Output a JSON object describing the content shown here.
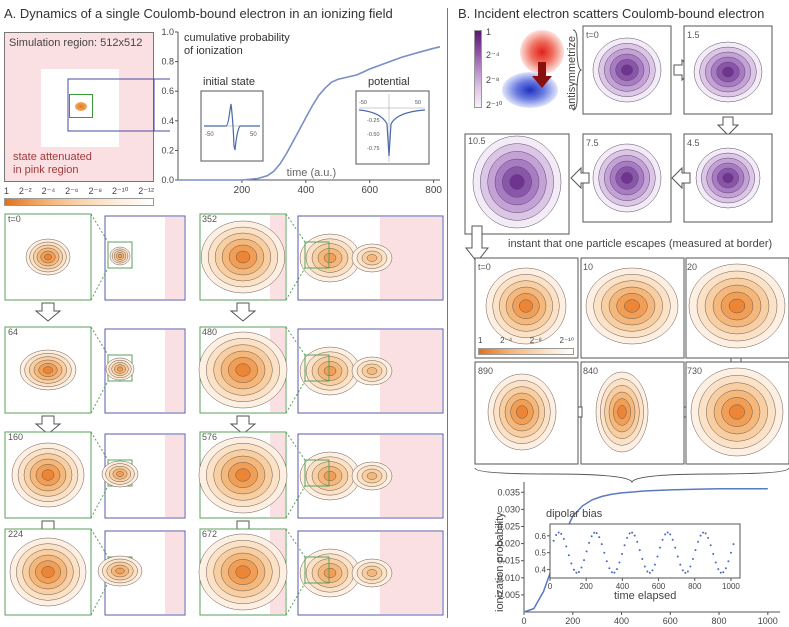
{
  "panelA": {
    "title": "A. Dynamics of a single Coulomb-bound electron in an ionizing field",
    "sim_region": "Simulation region: 512x512",
    "attenuated_line1": "state attenuated",
    "attenuated_line2": "in pink region",
    "prob_label_line1": "cumulative probability",
    "prob_label_line2": "of ionization",
    "initial_state": "initial state",
    "potential": "potential",
    "colorbar_labels": [
      "1",
      "2⁻²",
      "2⁻⁴",
      "2⁻⁶",
      "2⁻⁸",
      "2⁻¹⁰",
      "2⁻¹²"
    ],
    "main_chart": {
      "type": "line",
      "xlabel": "time (a.u.)",
      "xticks": [
        "200",
        "400",
        "600",
        "800"
      ],
      "yticks": [
        "0.0",
        "0.2",
        "0.4",
        "0.6",
        "0.8",
        "1.0"
      ],
      "xlim": [
        0,
        820
      ],
      "ylim": [
        0,
        1.0
      ],
      "x": [
        0,
        200,
        250,
        280,
        300,
        320,
        340,
        360,
        380,
        400,
        420,
        440,
        460,
        480,
        500,
        520,
        540,
        560,
        580,
        600,
        650,
        700,
        750,
        800,
        820
      ],
      "y": [
        0,
        0,
        0.01,
        0.03,
        0.06,
        0.11,
        0.18,
        0.26,
        0.34,
        0.42,
        0.5,
        0.57,
        0.62,
        0.66,
        0.68,
        0.69,
        0.7,
        0.71,
        0.73,
        0.75,
        0.79,
        0.83,
        0.86,
        0.89,
        0.9
      ]
    },
    "inset_initial": {
      "ticks": [
        "-50",
        "50"
      ]
    },
    "inset_potential": {
      "ticks": [
        "-50",
        "50",
        "-0.25",
        "-0.50",
        "-0.75"
      ]
    },
    "frames_left": [
      "t=0",
      "64",
      "160",
      "224"
    ],
    "frames_right": [
      "352",
      "480",
      "576",
      "672"
    ]
  },
  "panelB": {
    "title": "B. Incident electron scatters Coulomb-bound electron",
    "colorbar_labels": [
      "1",
      "2⁻⁴",
      "2⁻⁸",
      "2⁻¹⁰"
    ],
    "antisym": "antisymmetrize",
    "purple_frames": [
      "t=0",
      "1.5",
      "4.5",
      "7.5",
      "10.5"
    ],
    "escape_text": "instant that one particle escapes (measured at border)",
    "orange_frames": [
      "t=0",
      "10",
      "20",
      "730",
      "840",
      "890"
    ],
    "orange_cbar_labels": [
      "1",
      "2⁻⁴",
      "2⁻⁸",
      "2⁻¹⁰"
    ],
    "ion_chart": {
      "type": "line",
      "ylabel": "ionization probability",
      "xlabel": "time elapsed",
      "xticks": [
        "0",
        "200",
        "400",
        "600",
        "800",
        "1000"
      ],
      "yticks": [
        "0.005",
        "0.010",
        "0.015",
        "0.020",
        "0.025",
        "0.030",
        "0.035"
      ],
      "xlim": [
        0,
        1050
      ],
      "ylim": [
        0,
        0.038
      ],
      "x": [
        0,
        40,
        80,
        120,
        160,
        200,
        240,
        280,
        320,
        360,
        400,
        500,
        600,
        700,
        800,
        900,
        1000
      ],
      "y": [
        0,
        0.001,
        0.006,
        0.014,
        0.022,
        0.028,
        0.031,
        0.0328,
        0.0338,
        0.0344,
        0.0348,
        0.0354,
        0.0357,
        0.0359,
        0.036,
        0.036,
        0.036
      ]
    },
    "dipolar": {
      "title": "dipolar bias",
      "xticks": [
        "0",
        "200",
        "400",
        "600",
        "800",
        "1000"
      ],
      "yticks": [
        "0.4",
        "0.5",
        "0.6"
      ]
    }
  }
}
